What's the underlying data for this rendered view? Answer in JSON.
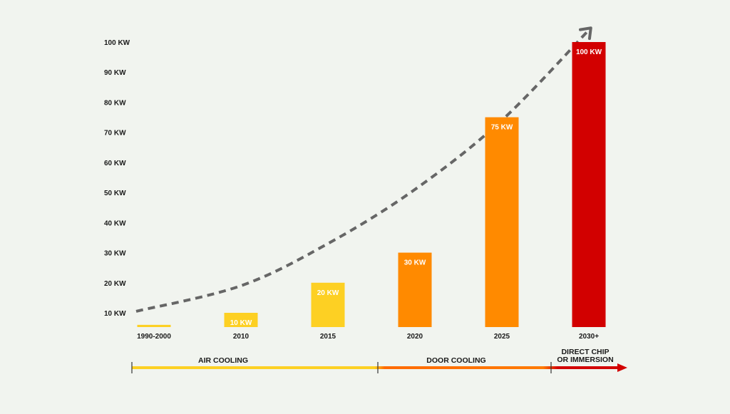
{
  "chart_data": {
    "type": "bar",
    "title": "",
    "xlabel": "",
    "ylabel": "",
    "categories": [
      "1990-2000",
      "2010",
      "2015",
      "2020",
      "2025",
      "2030+"
    ],
    "values": [
      6,
      10,
      20,
      30,
      75,
      100
    ],
    "data_labels": [
      "",
      "10 KW",
      "20 KW",
      "30 KW",
      "75 KW",
      "100 KW"
    ],
    "bar_colors": [
      "#fdd023",
      "#fdd023",
      "#fdd023",
      "#ff8a00",
      "#ff8a00",
      "#d20000"
    ],
    "y_ticks": [
      "10 KW",
      "20 KW",
      "30 KW",
      "40 KW",
      "50 KW",
      "60 KW",
      "70 KW",
      "80 KW",
      "90 KW",
      "100 KW"
    ],
    "y_tick_values": [
      10,
      20,
      30,
      40,
      50,
      60,
      70,
      80,
      90,
      100
    ],
    "ylim": [
      5,
      100
    ],
    "grid": false,
    "trend": {
      "style": "dashed-arrow",
      "color": "#666666",
      "points": [
        [
          0,
          10.5
        ],
        [
          1,
          19
        ],
        [
          2,
          33
        ],
        [
          3,
          51
        ],
        [
          4,
          74
        ],
        [
          5,
          104
        ]
      ]
    },
    "phases": [
      {
        "label": "AIR COOLING",
        "from": 0,
        "to": 3,
        "color": "#fdd023"
      },
      {
        "label": "DOOR COOLING",
        "from": 3,
        "to": 5,
        "color": "#ff7a00"
      },
      {
        "label": "DIRECT CHIP\nOR IMMERSION",
        "from": 5,
        "to": 6,
        "color": "#d20000"
      }
    ]
  }
}
